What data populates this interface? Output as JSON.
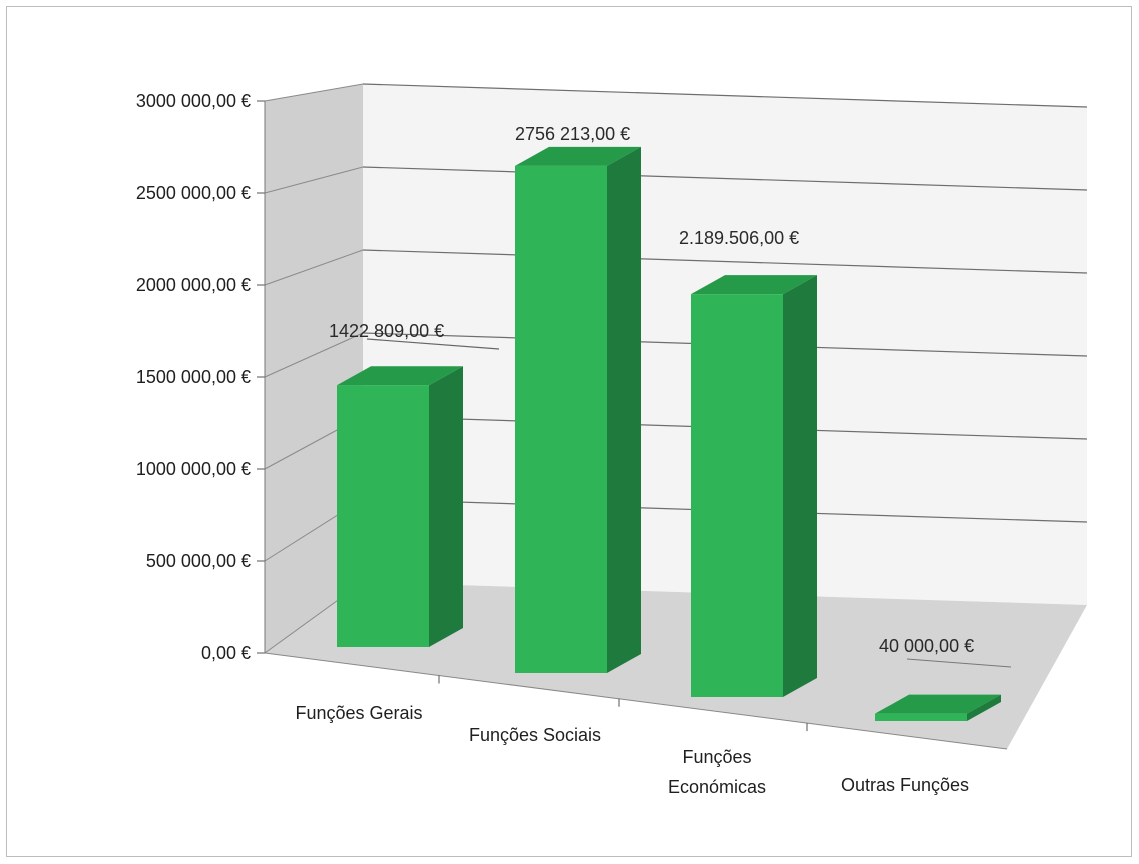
{
  "chart_data": {
    "type": "bar",
    "categories": [
      "Funções Gerais",
      "Funções Sociais",
      "Funções Económicas",
      "Outras Funções"
    ],
    "category_lines": [
      [
        "Funções Gerais"
      ],
      [
        "Funções Sociais"
      ],
      [
        "Funções",
        "Económicas"
      ],
      [
        "Outras Funções"
      ]
    ],
    "values": [
      1422809,
      2756213,
      2189506,
      40000
    ],
    "data_labels": [
      "1422 809,00 €",
      "2756 213,00 €",
      "2.189.506,00 €",
      "40 000,00 €"
    ],
    "y_ticks": [
      0,
      500000,
      1000000,
      1500000,
      2000000,
      2500000,
      3000000
    ],
    "y_tick_labels": [
      "0,00 €",
      "500 000,00 €",
      "1000 000,00 €",
      "1500 000,00 €",
      "2000 000,00 €",
      "2500 000,00 €",
      "3000 000,00 €"
    ],
    "ylim": [
      0,
      3000000
    ],
    "title": "",
    "xlabel": "",
    "ylabel": "",
    "grid": true,
    "legend": "none",
    "style": "3d-column",
    "colors": {
      "bar_front": "#2fb457",
      "bar_side": "#1f7a3d",
      "bar_top": "#259a48",
      "back_wall": "#f4f4f4",
      "side_wall": "#cfcfcf",
      "floor": "#d4d4d4",
      "grid": "#6e6e6e"
    }
  }
}
